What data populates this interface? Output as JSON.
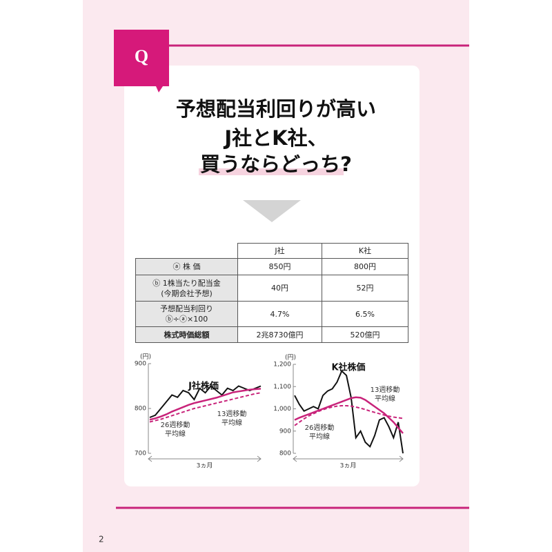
{
  "badge": "Q",
  "title": [
    "予想配当利回りが高い",
    "J社とK社、",
    "買うならどっち?"
  ],
  "table": {
    "header": [
      "J社",
      "K社"
    ],
    "rows": [
      {
        "label": [
          "ⓐ 株 価"
        ],
        "cells": [
          "850円",
          "800円"
        ]
      },
      {
        "label": [
          "ⓑ 1株当たり配当金",
          "(今期会社予想)"
        ],
        "cells": [
          "40円",
          "52円"
        ]
      },
      {
        "label": [
          "予想配当利回り",
          "ⓑ÷ⓐ×100"
        ],
        "cells": [
          "4.7%",
          "6.5%"
        ]
      },
      {
        "label": [
          "株式時価総額"
        ],
        "cells": [
          "2兆8730億円",
          "520億円"
        ]
      }
    ]
  },
  "charts": [
    {
      "type": "line",
      "title": "J社株価",
      "unit": "(円)",
      "x_label": "3ヵ月",
      "ylim": [
        700,
        900
      ],
      "yticks": [
        700,
        800,
        900
      ],
      "series": [
        {
          "name": "株価",
          "color": "#111111",
          "style": "solid",
          "values": [
            780,
            785,
            800,
            815,
            830,
            825,
            840,
            835,
            820,
            845,
            835,
            850,
            840,
            830,
            845,
            840,
            850,
            845,
            840,
            845,
            850
          ]
        },
        {
          "name": [
            "13週移動",
            "平均線"
          ],
          "color": "#c8237a",
          "style": "solid",
          "values": [
            775,
            778,
            782,
            787,
            793,
            798,
            803,
            808,
            812,
            815,
            818,
            821,
            824,
            828,
            832,
            836,
            838,
            840,
            842,
            843,
            844
          ]
        },
        {
          "name": [
            "26週移動",
            "平均線"
          ],
          "color": "#c8237a",
          "style": "dashed",
          "values": [
            770,
            773,
            776,
            780,
            784,
            788,
            792,
            796,
            800,
            803,
            806,
            809,
            812,
            815,
            818,
            821,
            824,
            827,
            830,
            833,
            835
          ]
        }
      ]
    },
    {
      "type": "line",
      "title": "K社株価",
      "unit": "(円)",
      "x_label": "3ヵ月",
      "ylim": [
        800,
        1200
      ],
      "yticks": [
        800,
        900,
        {
          "value": 1000,
          "label": "1,000"
        },
        {
          "value": 1100,
          "label": "1,100"
        },
        {
          "value": 1200,
          "label": "1,200"
        }
      ],
      "series": [
        {
          "name": "株価",
          "color": "#111111",
          "style": "solid",
          "values": [
            1060,
            1020,
            990,
            1000,
            1010,
            1000,
            1060,
            1080,
            1090,
            1120,
            1170,
            1150,
            1050,
            870,
            900,
            850,
            830,
            880,
            950,
            960,
            920,
            870,
            940,
            800
          ]
        },
        {
          "name": [
            "13週移動",
            "平均線"
          ],
          "color": "#c8237a",
          "style": "solid",
          "values": [
            950,
            960,
            968,
            976,
            984,
            992,
            1000,
            1008,
            1016,
            1024,
            1032,
            1040,
            1048,
            1052,
            1050,
            1040,
            1025,
            1010,
            995,
            980,
            960,
            940,
            915,
            890
          ]
        },
        {
          "name": [
            "26週移動",
            "平均線"
          ],
          "color": "#c8237a",
          "style": "dashed",
          "values": [
            925,
            940,
            955,
            968,
            978,
            988,
            996,
            1003,
            1008,
            1012,
            1014,
            1014,
            1012,
            1008,
            1003,
            997,
            990,
            984,
            978,
            972,
            967,
            963,
            960,
            957
          ]
        }
      ]
    }
  ],
  "page_number": "2"
}
